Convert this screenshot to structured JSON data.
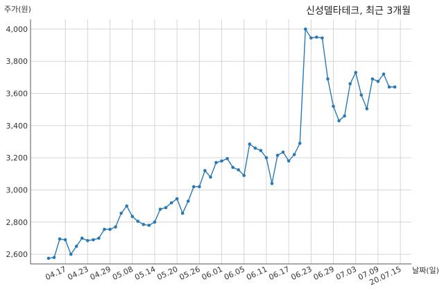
{
  "chart_data": {
    "type": "line",
    "title": "신성델타테크, 최근 3개월",
    "ylabel": "주가(원)",
    "xlabel": "날짜(일)",
    "ylim": [
      2540,
      4060
    ],
    "yticks": [
      2600,
      2800,
      3000,
      3200,
      3400,
      3600,
      3800,
      4000
    ],
    "ytick_labels": [
      "2,600",
      "2,800",
      "3,000",
      "3,200",
      "3,400",
      "3,600",
      "3,800",
      "4,000"
    ],
    "xtick_labels": [
      "04.17",
      "04.23",
      "04.29",
      "05.08",
      "05.14",
      "05.20",
      "05.26",
      "06.01",
      "06.05",
      "06.11",
      "06.17",
      "06.23",
      "06.29",
      "07.03",
      "07.09",
      "20.07.15"
    ],
    "xtick_index": [
      3,
      7,
      11,
      15,
      19,
      23,
      27,
      31,
      35,
      39,
      43,
      47,
      51,
      55,
      59,
      63
    ],
    "grid": true,
    "series": [
      {
        "color": "#2878b5",
        "values": [
          2575,
          2580,
          2695,
          2690,
          2600,
          2650,
          2700,
          2685,
          2690,
          2700,
          2755,
          2755,
          2770,
          2855,
          2900,
          2835,
          2805,
          2785,
          2780,
          2800,
          2880,
          2890,
          2920,
          2945,
          2855,
          2930,
          3020,
          3020,
          3120,
          3080,
          3170,
          3180,
          3195,
          3140,
          3125,
          3090,
          3285,
          3260,
          3245,
          3200,
          3040,
          3215,
          3235,
          3180,
          3220,
          3290,
          4000,
          3945,
          3950,
          3945,
          3690,
          3520,
          3430,
          3460,
          3660,
          3730,
          3590,
          3505,
          3690,
          3675,
          3720,
          3640,
          3640
        ]
      }
    ]
  }
}
